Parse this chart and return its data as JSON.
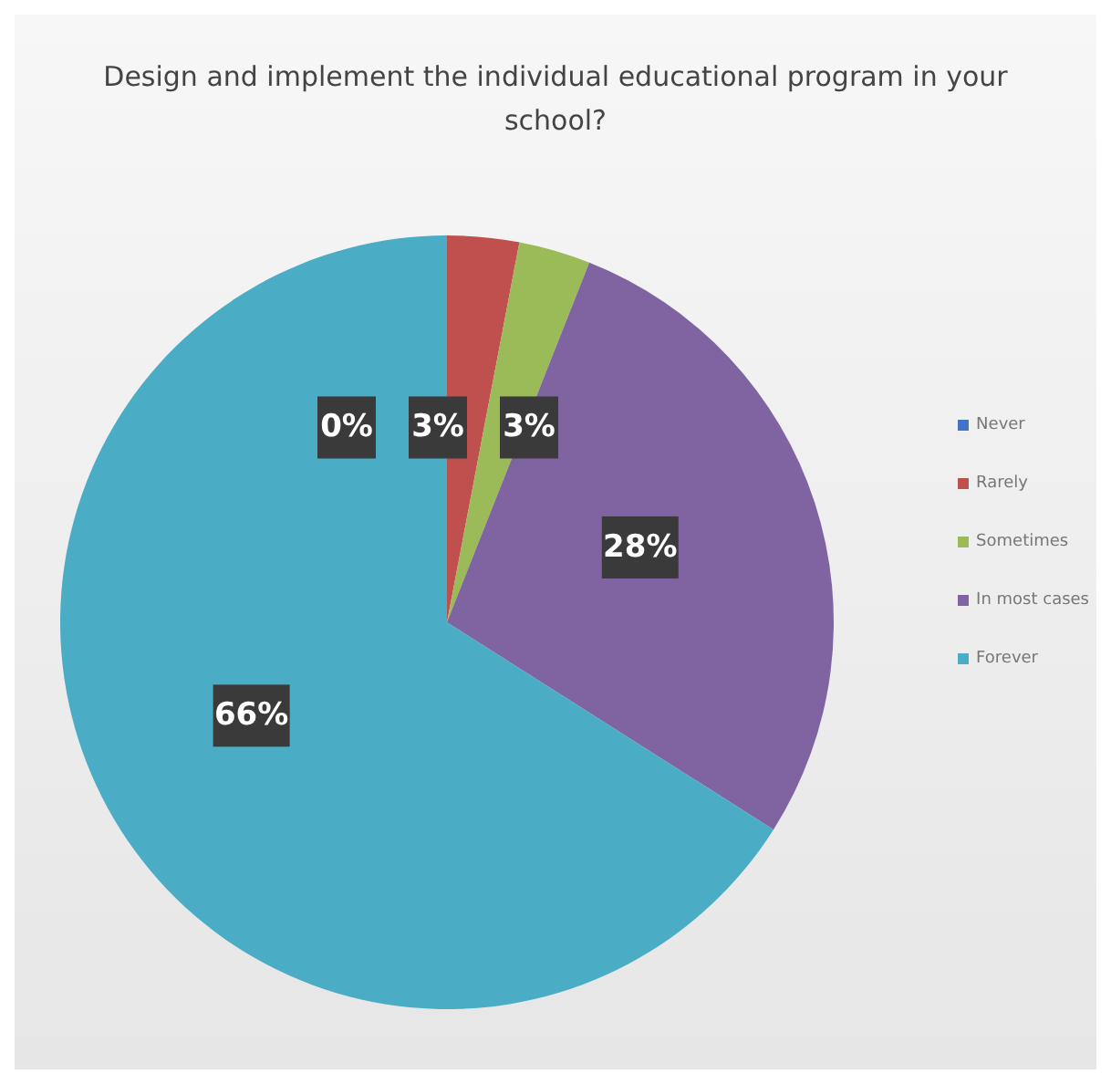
{
  "chart_data": {
    "type": "pie",
    "title": "Design and implement the individual educational program in your school?",
    "categories": [
      "Never",
      "Rarely",
      "Sometimes",
      "In most cases",
      "Forever"
    ],
    "values": [
      0,
      3,
      3,
      28,
      66
    ],
    "colors": [
      "#4472c4",
      "#c0504d",
      "#9bbb59",
      "#8064a2",
      "#4bacc6"
    ],
    "value_labels": [
      "0%",
      "3%",
      "3%",
      "28%",
      "66%"
    ],
    "legend": "right"
  }
}
